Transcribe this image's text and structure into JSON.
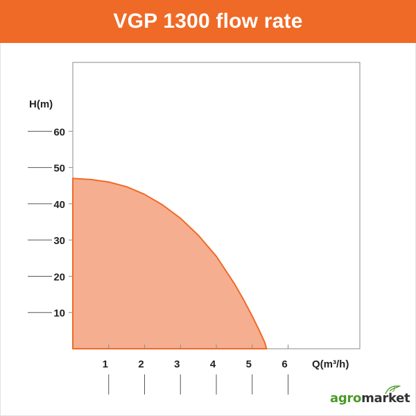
{
  "header": {
    "title": "VGP 1300 flow rate",
    "background": "#ef6a26",
    "text_color": "#ffffff"
  },
  "brand": {
    "prefix": "agro",
    "suffix": "market",
    "prefix_color": "#4c9a2a",
    "suffix_color": "#333333"
  },
  "chart_data": {
    "type": "area",
    "title": "VGP 1300 flow rate",
    "xlabel": "Q(m³/h)",
    "ylabel": "H(m)",
    "x_ticks": [
      1,
      2,
      3,
      4,
      5,
      6
    ],
    "y_ticks": [
      10,
      20,
      30,
      40,
      50,
      60
    ],
    "xlim": [
      0,
      8
    ],
    "ylim": [
      0,
      79
    ],
    "grid": false,
    "series": [
      {
        "color": "#ef6a26",
        "fill": "#f6ae90",
        "x": [
          0,
          0.5,
          1,
          1.5,
          2,
          2.5,
          3,
          3.5,
          4,
          4.5,
          4.75,
          5,
          5.2,
          5.35,
          5.4
        ],
        "y": [
          47,
          46.7,
          46,
          44.7,
          42.6,
          39.7,
          36,
          31.3,
          25.5,
          18,
          13.7,
          9,
          5,
          1.7,
          0
        ]
      }
    ]
  }
}
